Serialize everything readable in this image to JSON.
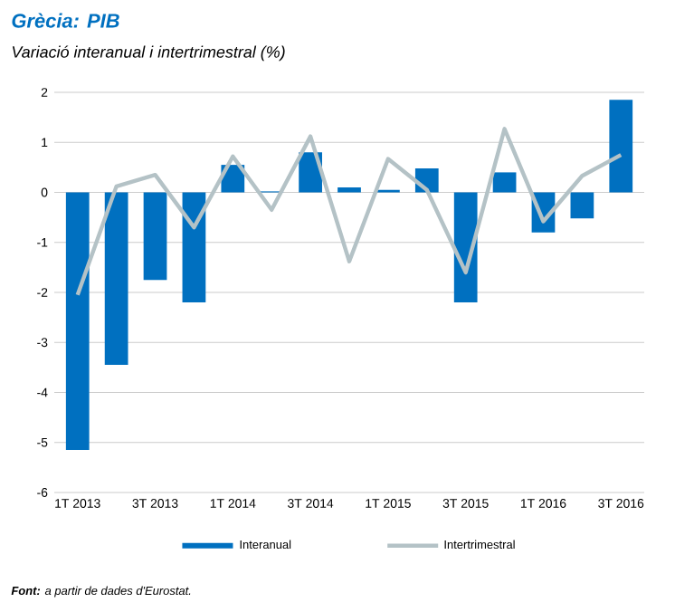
{
  "chart_data": {
    "type": "bar",
    "title": "Grècia: PIB",
    "subtitle": "Variació interanual i intertrimestral (%)",
    "categories": [
      "1T 2013",
      null,
      "3T 2013",
      null,
      "1T 2014",
      null,
      "3T 2014",
      null,
      "1T 2015",
      null,
      "3T 2015",
      null,
      "1T 2016",
      null,
      "3T 2016"
    ],
    "series": [
      {
        "name": "Interanual",
        "color": "#0070c0",
        "values": [
          -5.15,
          -3.45,
          -1.75,
          -2.2,
          0.55,
          0.02,
          0.8,
          0.1,
          0.05,
          0.48,
          -2.2,
          0.4,
          -0.8,
          -0.52,
          1.85
        ]
      },
      {
        "name": "Intertrimestral",
        "type": "line",
        "color": "#b4c2c6",
        "values": [
          -2.05,
          0.12,
          0.35,
          -0.7,
          0.72,
          -0.35,
          1.12,
          -1.38,
          0.67,
          0.05,
          -1.6,
          1.27,
          -0.58,
          0.33,
          0.75
        ]
      }
    ],
    "ylim": [
      -6,
      2
    ],
    "yticks": [
      -6,
      -5,
      -4,
      -3,
      -2,
      -1,
      0,
      1,
      2
    ],
    "grid": "y",
    "legend": "bottom",
    "annotations": [
      "**Font:** a partir de dades d'Eurostat."
    ]
  }
}
